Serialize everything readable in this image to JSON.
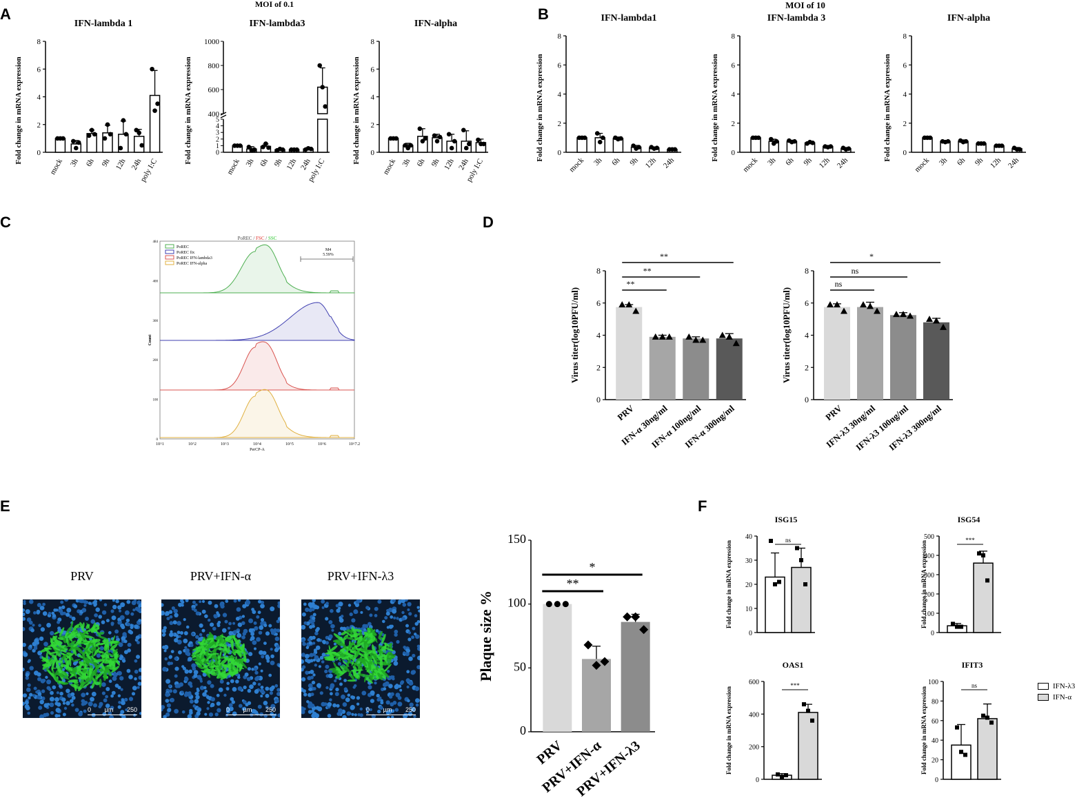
{
  "panel_labels": [
    "A",
    "B",
    "C",
    "D",
    "E",
    "F"
  ],
  "colors": {
    "light": "#d9d9d9",
    "mid": "#a6a6a6",
    "mid2": "#8c8c8c",
    "dark": "#595959",
    "green": "#27c52a"
  },
  "chart_data": [
    {
      "id": "A1",
      "type": "bar",
      "group_title": "MOI of 0.1",
      "title": "IFN-lambda 1",
      "ylabel": "Fold change in mRNA expression",
      "categories": [
        "mock",
        "3h",
        "6h",
        "9h",
        "12h",
        "24h",
        "poly I:C"
      ],
      "values": [
        1.0,
        0.6,
        1.35,
        1.4,
        1.3,
        1.15,
        4.1
      ],
      "errors": [
        0.05,
        0.25,
        0.25,
        0.55,
        0.95,
        0.5,
        1.8
      ],
      "points": [
        [
          1,
          1,
          1
        ],
        [
          0.8,
          0.3,
          0.7
        ],
        [
          1.2,
          1.6,
          1.3
        ],
        [
          1.0,
          2.0,
          1.3
        ],
        [
          0.3,
          2.3,
          1.3
        ],
        [
          1.6,
          1.4,
          0.5
        ],
        [
          6.0,
          3.0,
          3.5
        ]
      ],
      "ylim": [
        0,
        8
      ],
      "yticks": [
        0,
        2,
        4,
        6,
        8
      ]
    },
    {
      "id": "A2",
      "type": "bar",
      "title": "IFN-lambda3",
      "ylabel": "Fold change in mRNA expression",
      "categories": [
        "mock",
        "3h",
        "6h",
        "9h",
        "12h",
        "24h",
        "poly I:C"
      ],
      "values": [
        1.0,
        0.5,
        0.9,
        0.4,
        0.4,
        0.5,
        620
      ],
      "errors": [
        0.1,
        0.35,
        0.35,
        0.15,
        0.15,
        0.2,
        160
      ],
      "points": [
        [
          1,
          1,
          1
        ],
        [
          0.8,
          0.3,
          0.4
        ],
        [
          0.8,
          1.3,
          0.7
        ],
        [
          0.3,
          0.5,
          0.4
        ],
        [
          0.4,
          0.4,
          0.4
        ],
        [
          0.4,
          0.6,
          0.5
        ],
        [
          800,
          620,
          460
        ]
      ],
      "ylim_low": [
        0,
        5
      ],
      "ylim_high": [
        400,
        1000
      ],
      "yticks_low": [
        0,
        1,
        2,
        3,
        4,
        5
      ],
      "yticks_high": [
        400,
        600,
        800,
        1000
      ]
    },
    {
      "id": "A3",
      "type": "bar",
      "title": "IFN-alpha",
      "ylabel": "Fold change in mRNA expression",
      "categories": [
        "mock",
        "3h",
        "6h",
        "9h",
        "12h",
        "24h",
        "poly I:C"
      ],
      "values": [
        1.0,
        0.5,
        1.15,
        1.05,
        0.8,
        0.8,
        0.7
      ],
      "errors": [
        0.05,
        0.15,
        0.55,
        0.25,
        0.5,
        0.75,
        0.25
      ],
      "points": [
        [
          1,
          1,
          1
        ],
        [
          0.5,
          0.3,
          0.5
        ],
        [
          1.7,
          0.8,
          1.0
        ],
        [
          1.2,
          0.8,
          1.1
        ],
        [
          1.3,
          0.3,
          0.8
        ],
        [
          1.6,
          0.3,
          0.6
        ],
        [
          0.9,
          0.6,
          0.6
        ]
      ],
      "ylim": [
        0,
        8
      ],
      "yticks": [
        0,
        2,
        4,
        6,
        8
      ]
    },
    {
      "id": "B1",
      "type": "bar",
      "group_title": "MOI of 10",
      "title": "IFN-lambda1",
      "ylabel": "Fold change in mRNA expression",
      "categories": [
        "mock",
        "3h",
        "6h",
        "9h",
        "12h",
        "24h"
      ],
      "values": [
        1.0,
        1.0,
        0.95,
        0.35,
        0.3,
        0.2
      ],
      "errors": [
        0.05,
        0.3,
        0.1,
        0.12,
        0.06,
        0.05
      ],
      "points": [
        [
          1,
          1,
          1
        ],
        [
          1.3,
          0.7,
          1.0
        ],
        [
          1.0,
          0.9,
          0.95
        ],
        [
          0.45,
          0.25,
          0.35
        ],
        [
          0.35,
          0.25,
          0.3
        ],
        [
          0.2,
          0.2,
          0.2
        ]
      ],
      "ylim": [
        0,
        8
      ],
      "yticks": [
        0,
        2,
        4,
        6,
        8
      ]
    },
    {
      "id": "B2",
      "type": "bar",
      "title": "IFN-lambda 3",
      "ylabel": "Fold change in mRNA expression",
      "categories": [
        "mock",
        "3h",
        "6h",
        "9h",
        "12h",
        "24h"
      ],
      "values": [
        1.0,
        0.75,
        0.75,
        0.65,
        0.4,
        0.25
      ],
      "errors": [
        0.05,
        0.15,
        0.08,
        0.08,
        0.05,
        0.08
      ],
      "points": [
        [
          1,
          1,
          1
        ],
        [
          0.9,
          0.6,
          0.75
        ],
        [
          0.8,
          0.7,
          0.75
        ],
        [
          0.6,
          0.7,
          0.65
        ],
        [
          0.4,
          0.35,
          0.4
        ],
        [
          0.3,
          0.2,
          0.25
        ]
      ],
      "ylim": [
        0,
        8
      ],
      "yticks": [
        0,
        2,
        4,
        6,
        8
      ]
    },
    {
      "id": "B3",
      "type": "bar",
      "title": "IFN-alpha",
      "ylabel": "Fold change in mRNA expression",
      "categories": [
        "mock",
        "3h",
        "6h",
        "9h",
        "12h",
        "24h"
      ],
      "values": [
        1.0,
        0.75,
        0.75,
        0.6,
        0.45,
        0.25
      ],
      "errors": [
        0.03,
        0.05,
        0.1,
        0.05,
        0.05,
        0.08
      ],
      "points": [
        [
          1,
          1,
          1
        ],
        [
          0.75,
          0.7,
          0.75
        ],
        [
          0.8,
          0.7,
          0.75
        ],
        [
          0.6,
          0.6,
          0.6
        ],
        [
          0.45,
          0.45,
          0.45
        ],
        [
          0.3,
          0.2,
          0.2
        ]
      ],
      "ylim": [
        0,
        8
      ],
      "yticks": [
        0,
        2,
        4,
        6,
        8
      ]
    },
    {
      "id": "C",
      "type": "histogram",
      "title_parts": [
        "PoREC / ",
        "FSC",
        " / ",
        "SSC"
      ],
      "xlabel": "PerCP-A",
      "ylabel": "Count",
      "legend": [
        "PoREC",
        "PoREC fix",
        "PoREC IFN-lambda3",
        "PoREC IFN-alpha"
      ],
      "series_colors": [
        "#4caf50",
        "#3f3fb0",
        "#d9534f",
        "#e0b040"
      ],
      "gate_label": "M4",
      "gate_value": "5.59%",
      "xticks": [
        "10^1",
        "10^2",
        "10^3",
        "10^4",
        "10^5",
        "10^6",
        "10^7.2"
      ],
      "yticks": [
        "0",
        "100",
        "200",
        "300",
        "400",
        "484"
      ]
    },
    {
      "id": "D1",
      "type": "bar",
      "ylabel": "Virus titer(log10PFU/ml)",
      "categories": [
        "PRV",
        "IFN-α 30ng/ml",
        "IFN-α 100ng/ml",
        "IFN-α 300ng/ml"
      ],
      "values": [
        5.75,
        3.9,
        3.8,
        3.8
      ],
      "errors": [
        0.15,
        0.1,
        0.1,
        0.3
      ],
      "points": [
        [
          5.9,
          5.9,
          5.5
        ],
        [
          3.9,
          3.9,
          3.9
        ],
        [
          3.9,
          3.7,
          3.7
        ],
        [
          4.0,
          3.9,
          3.5
        ]
      ],
      "ylim": [
        0,
        8
      ],
      "yticks": [
        0,
        2,
        4,
        6,
        8
      ],
      "sig": [
        {
          "from": 0,
          "to": 1,
          "label": "**"
        },
        {
          "from": 0,
          "to": 2,
          "label": "**"
        },
        {
          "from": 0,
          "to": 3,
          "label": "**"
        }
      ]
    },
    {
      "id": "D2",
      "type": "bar",
      "ylabel": "Virus titer(log10PFU/ml)",
      "categories": [
        "PRV",
        "IFN-λ3 30ng/ml",
        "IFN-λ3 100ng/ml",
        "IFN-λ3 300ng/ml"
      ],
      "values": [
        5.75,
        5.75,
        5.25,
        4.8
      ],
      "errors": [
        0.2,
        0.3,
        0.15,
        0.25
      ],
      "points": [
        [
          5.9,
          5.9,
          5.5
        ],
        [
          5.9,
          5.8,
          5.5
        ],
        [
          5.3,
          5.3,
          5.2
        ],
        [
          5.0,
          4.9,
          4.5
        ]
      ],
      "ylim": [
        0,
        8
      ],
      "yticks": [
        0,
        2,
        4,
        6,
        8
      ],
      "sig": [
        {
          "from": 0,
          "to": 1,
          "label": "ns"
        },
        {
          "from": 0,
          "to": 2,
          "label": "ns"
        },
        {
          "from": 0,
          "to": 3,
          "label": "*"
        }
      ]
    },
    {
      "id": "E",
      "type": "bar",
      "ylabel": "Plaque size %",
      "categories": [
        "PRV",
        "PRV+IFN-α",
        "PRV+IFN-λ3"
      ],
      "values": [
        100,
        57,
        86
      ],
      "errors": [
        0,
        10,
        6
      ],
      "points": [
        [
          100,
          100,
          100
        ],
        [
          68,
          52,
          55
        ],
        [
          90,
          90,
          80
        ]
      ],
      "ylim": [
        0,
        150
      ],
      "yticks": [
        0,
        50,
        100,
        150
      ],
      "sig": [
        {
          "from": 0,
          "to": 1,
          "label": "**"
        },
        {
          "from": 0,
          "to": 2,
          "label": "*"
        }
      ]
    },
    {
      "id": "F1",
      "type": "bar",
      "title": "ISG15",
      "ylabel": "Fold change in mRNA expression",
      "series": [
        {
          "name": "IFN-λ3",
          "value": 23,
          "error": 10,
          "points": [
            38,
            20,
            21
          ]
        },
        {
          "name": "IFN-α",
          "value": 27,
          "error": 8,
          "points": [
            35,
            30,
            20
          ]
        }
      ],
      "ylim": [
        0,
        40
      ],
      "yticks": [
        0,
        10,
        20,
        30,
        40
      ],
      "sig": "ns"
    },
    {
      "id": "F2",
      "type": "bar",
      "title": "ISG54",
      "ylabel": "Fold change in mRNA expression",
      "series": [
        {
          "name": "IFN-λ3",
          "value": 35,
          "error": 12,
          "points": [
            45,
            30,
            30
          ]
        },
        {
          "name": "IFN-α",
          "value": 360,
          "error": 62,
          "points": [
            410,
            400,
            270
          ]
        }
      ],
      "ylim": [
        0,
        500
      ],
      "yticks": [
        0,
        100,
        200,
        300,
        400,
        500
      ],
      "sig": "***"
    },
    {
      "id": "F3",
      "type": "bar",
      "title": "OAS1",
      "ylabel": "Fold change in mRNA expression",
      "series": [
        {
          "name": "IFN-λ3",
          "value": 25,
          "error": 10,
          "points": [
            30,
            15,
            25
          ]
        },
        {
          "name": "IFN-α",
          "value": 410,
          "error": 50,
          "points": [
            460,
            420,
            360
          ]
        }
      ],
      "ylim": [
        0,
        600
      ],
      "yticks": [
        0,
        200,
        400,
        600
      ],
      "sig": "***"
    },
    {
      "id": "F4",
      "type": "bar",
      "title": "IFIT3",
      "ylabel": "Fold change in mRNA expression",
      "series": [
        {
          "name": "IFN-λ3",
          "value": 35,
          "error": 21,
          "points": [
            53,
            28,
            25
          ]
        },
        {
          "name": "IFN-α",
          "value": 62,
          "error": 15,
          "points": [
            65,
            63,
            58
          ]
        }
      ],
      "ylim": [
        0,
        100
      ],
      "yticks": [
        0,
        20,
        40,
        60,
        80,
        100
      ],
      "sig": "ns"
    }
  ],
  "legend_F": [
    "IFN-λ3",
    "IFN-α"
  ],
  "micrographs": [
    {
      "label": "PRV",
      "scale": [
        "0",
        "µm",
        "250"
      ],
      "plaque_extent": 1.0
    },
    {
      "label": "PRV+IFN-α",
      "scale": [
        "0",
        "µm",
        "250"
      ],
      "plaque_extent": 0.65
    },
    {
      "label": "PRV+IFN-λ3",
      "scale": [
        "0",
        "µm",
        "250"
      ],
      "plaque_extent": 0.85
    }
  ]
}
